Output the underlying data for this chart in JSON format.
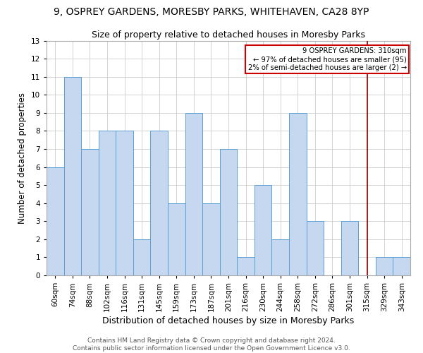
{
  "title1": "9, OSPREY GARDENS, MORESBY PARKS, WHITEHAVEN, CA28 8YP",
  "title2": "Size of property relative to detached houses in Moresby Parks",
  "xlabel": "Distribution of detached houses by size in Moresby Parks",
  "ylabel": "Number of detached properties",
  "categories": [
    "60sqm",
    "74sqm",
    "88sqm",
    "102sqm",
    "116sqm",
    "131sqm",
    "145sqm",
    "159sqm",
    "173sqm",
    "187sqm",
    "201sqm",
    "216sqm",
    "230sqm",
    "244sqm",
    "258sqm",
    "272sqm",
    "286sqm",
    "301sqm",
    "315sqm",
    "329sqm",
    "343sqm"
  ],
  "values": [
    6,
    11,
    7,
    8,
    8,
    2,
    8,
    4,
    9,
    4,
    7,
    1,
    5,
    2,
    9,
    3,
    0,
    3,
    0,
    1,
    1
  ],
  "bar_color": "#c5d8f0",
  "bar_edge_color": "#5a9fd4",
  "ylim": [
    0,
    13
  ],
  "yticks": [
    0,
    1,
    2,
    3,
    4,
    5,
    6,
    7,
    8,
    9,
    10,
    11,
    12,
    13
  ],
  "vline_index": 18,
  "vline_color": "#8b0000",
  "annotation_text": "9 OSPREY GARDENS: 310sqm\n← 97% of detached houses are smaller (95)\n2% of semi-detached houses are larger (2) →",
  "annotation_box_color": "#cc0000",
  "footer1": "Contains HM Land Registry data © Crown copyright and database right 2024.",
  "footer2": "Contains public sector information licensed under the Open Government Licence v3.0.",
  "title_fontsize": 10,
  "subtitle_fontsize": 9,
  "tick_fontsize": 7.5,
  "ylabel_fontsize": 8.5,
  "xlabel_fontsize": 9
}
